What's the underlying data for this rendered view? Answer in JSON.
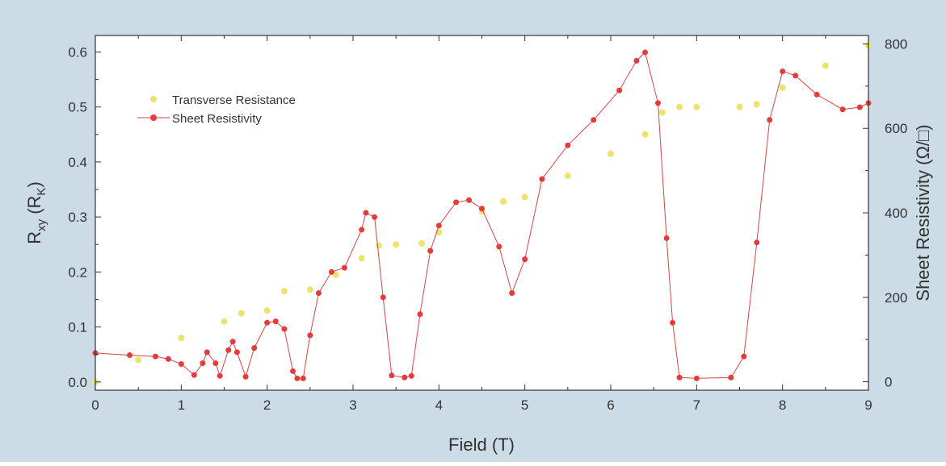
{
  "chart_data": {
    "type": "scatter",
    "title": "",
    "xlabel": "Field (T)",
    "ylabel_left": {
      "main": "R",
      "main_sub": "xy",
      "unit_open": " (R",
      "unit_sub": "K",
      "unit_close": ")"
    },
    "ylabel_right": "Sheet Resistivity (Ω/□)",
    "xlim": [
      0,
      9
    ],
    "ylim_left": [
      -0.015,
      0.63
    ],
    "ylim_right": [
      -20,
      820
    ],
    "x_ticks": [
      "0",
      "1",
      "2",
      "3",
      "4",
      "5",
      "6",
      "7",
      "8",
      "9"
    ],
    "y_left_ticks": [
      "0.0",
      "0.1",
      "0.2",
      "0.3",
      "0.4",
      "0.5",
      "0.6"
    ],
    "y_right_ticks": [
      "0",
      "200",
      "400",
      "600",
      "800"
    ],
    "grid": false,
    "legend_position": "top-left",
    "colors": {
      "background": "#ccdce6",
      "plot": "#ffffff",
      "transverse": "#eae36e",
      "sheet": "#e83a3a",
      "sheet_line": "#d64545"
    },
    "series": [
      {
        "name": "Transverse Resistance",
        "axis": "left",
        "points": [
          [
            0.0,
            0.0
          ],
          [
            0.5,
            0.04
          ],
          [
            1.0,
            0.08
          ],
          [
            1.5,
            0.11
          ],
          [
            1.7,
            0.125
          ],
          [
            2.0,
            0.13
          ],
          [
            2.2,
            0.165
          ],
          [
            2.5,
            0.168
          ],
          [
            2.8,
            0.195
          ],
          [
            3.1,
            0.225
          ],
          [
            3.3,
            0.248
          ],
          [
            3.5,
            0.25
          ],
          [
            3.8,
            0.252
          ],
          [
            4.0,
            0.272
          ],
          [
            4.5,
            0.31
          ],
          [
            4.75,
            0.328
          ],
          [
            5.0,
            0.336
          ],
          [
            5.5,
            0.375
          ],
          [
            6.0,
            0.415
          ],
          [
            6.4,
            0.45
          ],
          [
            6.6,
            0.49
          ],
          [
            6.8,
            0.5
          ],
          [
            7.0,
            0.5
          ],
          [
            7.5,
            0.5
          ],
          [
            7.7,
            0.505
          ],
          [
            8.0,
            0.535
          ],
          [
            8.5,
            0.575
          ],
          [
            9.0,
            0.612
          ]
        ]
      },
      {
        "name": "Sheet Resistivity",
        "axis": "right",
        "points": [
          [
            0.0,
            68
          ],
          [
            0.4,
            63
          ],
          [
            0.7,
            60
          ],
          [
            0.85,
            54
          ],
          [
            1.0,
            42
          ],
          [
            1.15,
            16
          ],
          [
            1.25,
            44
          ],
          [
            1.3,
            70
          ],
          [
            1.4,
            44
          ],
          [
            1.45,
            14
          ],
          [
            1.55,
            75
          ],
          [
            1.6,
            95
          ],
          [
            1.65,
            70
          ],
          [
            1.75,
            12
          ],
          [
            1.85,
            80
          ],
          [
            2.0,
            140
          ],
          [
            2.1,
            143
          ],
          [
            2.2,
            125
          ],
          [
            2.3,
            25
          ],
          [
            2.35,
            8
          ],
          [
            2.42,
            8
          ],
          [
            2.5,
            110
          ],
          [
            2.6,
            210
          ],
          [
            2.75,
            260
          ],
          [
            2.9,
            270
          ],
          [
            3.1,
            360
          ],
          [
            3.15,
            400
          ],
          [
            3.25,
            390
          ],
          [
            3.35,
            200
          ],
          [
            3.45,
            15
          ],
          [
            3.6,
            10
          ],
          [
            3.68,
            14
          ],
          [
            3.78,
            160
          ],
          [
            3.9,
            310
          ],
          [
            4.0,
            370
          ],
          [
            4.2,
            425
          ],
          [
            4.35,
            430
          ],
          [
            4.5,
            410
          ],
          [
            4.7,
            320
          ],
          [
            4.85,
            210
          ],
          [
            5.0,
            290
          ],
          [
            5.2,
            480
          ],
          [
            5.5,
            560
          ],
          [
            5.8,
            620
          ],
          [
            6.1,
            690
          ],
          [
            6.3,
            760
          ],
          [
            6.4,
            780
          ],
          [
            6.55,
            660
          ],
          [
            6.65,
            340
          ],
          [
            6.72,
            140
          ],
          [
            6.8,
            10
          ],
          [
            7.0,
            8
          ],
          [
            7.4,
            10
          ],
          [
            7.55,
            60
          ],
          [
            7.7,
            330
          ],
          [
            7.85,
            620
          ],
          [
            8.0,
            735
          ],
          [
            8.15,
            725
          ],
          [
            8.4,
            680
          ],
          [
            8.7,
            645
          ],
          [
            8.9,
            650
          ],
          [
            9.0,
            660
          ]
        ]
      }
    ]
  }
}
